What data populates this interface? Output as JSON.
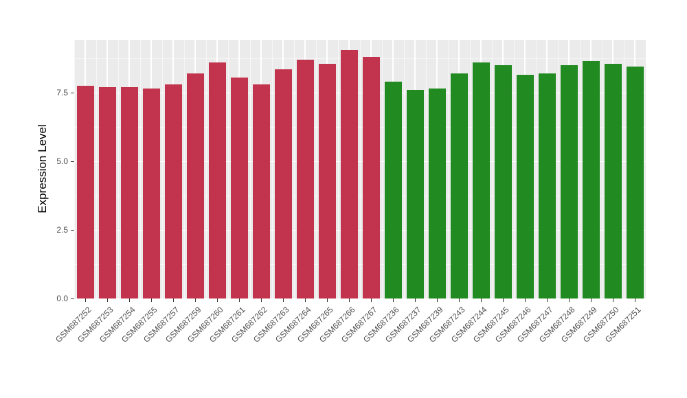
{
  "chart_data": {
    "type": "bar",
    "title": "",
    "xlabel": "",
    "ylabel": "Expression Level",
    "ylim": [
      0,
      9.43
    ],
    "ytick_values": [
      0,
      2.5,
      5,
      7.5
    ],
    "ytick_labels": [
      "0.0",
      "2.5",
      "5.0",
      "7.5"
    ],
    "grid": true,
    "legend": "none",
    "panel_background": "#EBEBEB",
    "gridline_color": "#FFFFFF",
    "tick_label_color": "#4D4D4D",
    "group_colors": {
      "group1": "#C2334D",
      "group2": "#218B21"
    },
    "categories": [
      "GSM687252",
      "GSM687253",
      "GSM687254",
      "GSM687255",
      "GSM687257",
      "GSM687259",
      "GSM687260",
      "GSM687261",
      "GSM687262",
      "GSM687263",
      "GSM687264",
      "GSM687265",
      "GSM687266",
      "GSM687267",
      "GSM687236",
      "GSM687237",
      "GSM687239",
      "GSM687243",
      "GSM687244",
      "GSM687245",
      "GSM687246",
      "GSM687247",
      "GSM687248",
      "GSM687249",
      "GSM687250",
      "GSM687251"
    ],
    "values": [
      7.75,
      7.7,
      7.7,
      7.65,
      7.8,
      8.2,
      8.6,
      8.05,
      7.8,
      8.35,
      8.7,
      8.55,
      9.05,
      8.8,
      7.9,
      7.6,
      7.65,
      8.2,
      8.6,
      8.5,
      8.15,
      8.2,
      8.5,
      8.65,
      8.55,
      8.45
    ],
    "groups": [
      "group1",
      "group1",
      "group1",
      "group1",
      "group1",
      "group1",
      "group1",
      "group1",
      "group1",
      "group1",
      "group1",
      "group1",
      "group1",
      "group1",
      "group2",
      "group2",
      "group2",
      "group2",
      "group2",
      "group2",
      "group2",
      "group2",
      "group2",
      "group2",
      "group2",
      "group2"
    ]
  }
}
